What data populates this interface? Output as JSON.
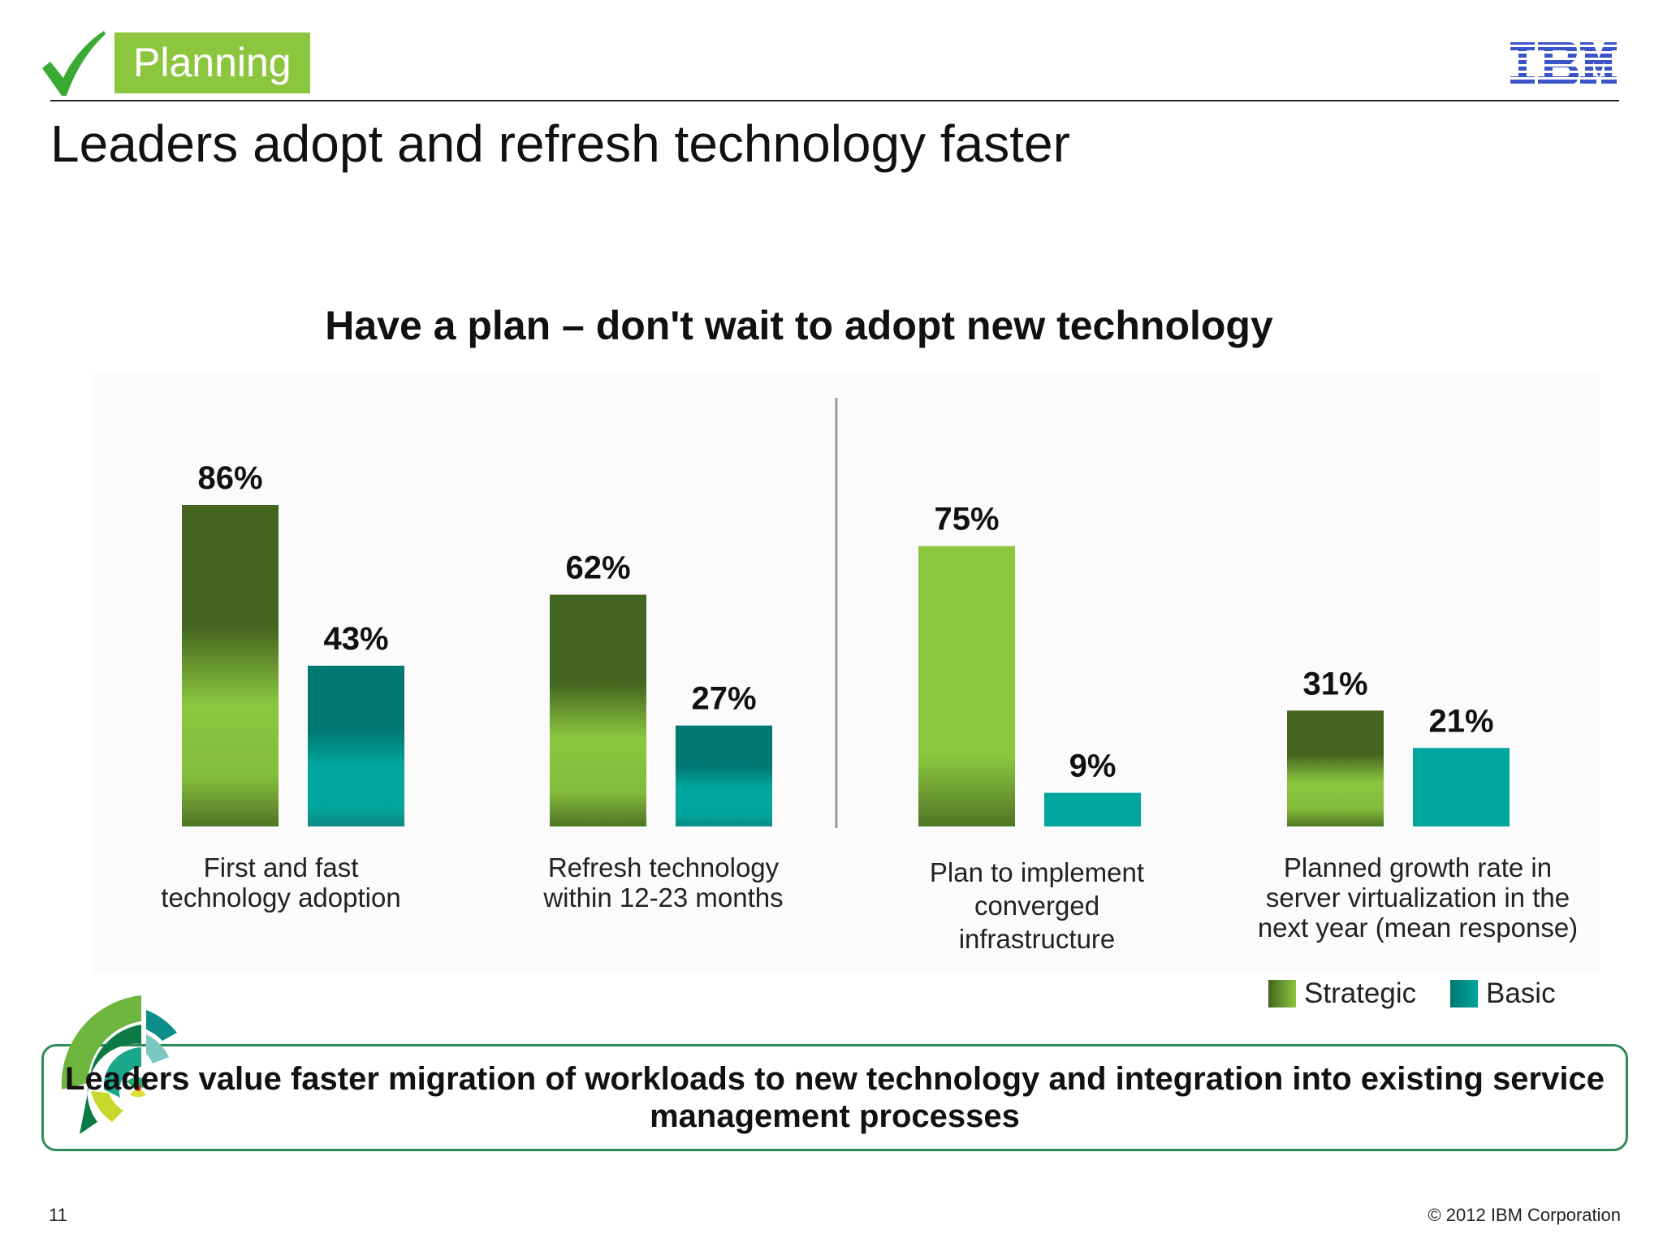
{
  "header": {
    "section_tag": "Planning",
    "slide_title": "Leaders adopt and refresh technology faster",
    "logo_text": "IBM"
  },
  "chart_data": {
    "type": "bar",
    "title": "Have a plan – don't wait to adopt new technology",
    "categories": [
      "First and fast\ntechnology adoption",
      "Refresh technology\nwithin 12-23 months",
      "Plan to implement\nconverged\ninfrastructure",
      "Planned growth rate in\nserver virtualization in the\nnext year (mean response)"
    ],
    "series": [
      {
        "name": "Strategic",
        "values": [
          86,
          62,
          75,
          31
        ]
      },
      {
        "name": "Basic",
        "values": [
          43,
          27,
          9,
          21
        ]
      }
    ],
    "value_labels": {
      "Strategic": [
        "86%",
        "62%",
        "75%",
        "31%"
      ],
      "Basic": [
        "43%",
        "27%",
        "9%",
        "21%"
      ]
    },
    "unit": "%",
    "ylim": [
      0,
      86
    ],
    "grid": false,
    "legend_position": "bottom-right",
    "divider_after_category": 2
  },
  "legend": {
    "items": [
      {
        "label": "Strategic"
      },
      {
        "label": "Basic"
      }
    ]
  },
  "callout": {
    "text": "Leaders value faster migration of workloads to new technology and integration into existing service management processes"
  },
  "footer": {
    "page_number": "11",
    "copyright": "© 2012 IBM Corporation"
  },
  "colors": {
    "strategic_dark": "#44651f",
    "strategic_light": "#8cc63f",
    "basic_dark": "#007872",
    "basic_light": "#00a59d",
    "callout_border": "#2e8b57",
    "section_tag": "#8cc63f",
    "ibm_blue": "#3b55c8"
  }
}
